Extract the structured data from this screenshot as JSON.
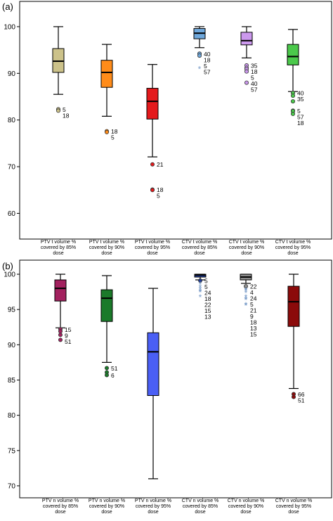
{
  "chart_data": [
    {
      "type": "box",
      "panel_label": "(a)",
      "ylim": [
        56,
        103
      ],
      "yticks": [
        60,
        70,
        80,
        90,
        100
      ],
      "categories": [
        {
          "lines": [
            "PTV t volume %",
            "covered by 85%",
            "dose"
          ],
          "color": "#ccc28a",
          "stats": {
            "min": 85.5,
            "q1": 90.2,
            "median": 92.6,
            "q3": 95.3,
            "max": 100.0
          },
          "outliers": [
            {
              "value": 82.3,
              "label": "5",
              "kind": "circle"
            },
            {
              "value": 82.0,
              "label": "18",
              "kind": "circle"
            }
          ]
        },
        {
          "lines": [
            "PTV t volume %",
            "covered by 90%",
            "dose"
          ],
          "color": "#ff8c1a",
          "stats": {
            "min": 80.8,
            "q1": 87.0,
            "median": 90.2,
            "q3": 92.8,
            "max": 96.2
          },
          "outliers": [
            {
              "value": 77.6,
              "label": "18",
              "kind": "circle"
            },
            {
              "value": 77.4,
              "label": "5",
              "kind": "circle"
            }
          ]
        },
        {
          "lines": [
            "PTV t volume %",
            "covered by 95%",
            "dose"
          ],
          "color": "#e41a1c",
          "stats": {
            "min": 72.1,
            "q1": 80.2,
            "median": 84.0,
            "q3": 86.8,
            "max": 91.9
          },
          "outliers": [
            {
              "value": 70.5,
              "label": "21",
              "kind": "circle"
            },
            {
              "value": 65.1,
              "label": "18",
              "kind": "circle"
            },
            {
              "value": 65.0,
              "label": "5",
              "kind": "circle"
            }
          ]
        },
        {
          "lines": [
            "CTV t volume %",
            "covered by 85%",
            "dose"
          ],
          "color": "#6fa8dc",
          "stats": {
            "min": 95.5,
            "q1": 97.4,
            "median": 98.6,
            "q3": 99.6,
            "max": 100.0
          },
          "outliers": [
            {
              "value": 94.2,
              "label": "40",
              "kind": "circle"
            },
            {
              "value": 94.2,
              "label": "18",
              "kind": "circle"
            },
            {
              "value": 93.8,
              "label": "5",
              "kind": "circle"
            },
            {
              "value": 91.0,
              "label": "57",
              "kind": "star"
            }
          ]
        },
        {
          "lines": [
            "CTV t volume %",
            "covered by 90%",
            "dose"
          ],
          "color": "#cc99ee",
          "stats": {
            "min": 93.3,
            "q1": 96.1,
            "median": 97.0,
            "q3": 98.8,
            "max": 100.0
          },
          "outliers": [
            {
              "value": 91.7,
              "label": "35",
              "kind": "circle"
            },
            {
              "value": 91.2,
              "label": "18",
              "kind": "circle"
            },
            {
              "value": 90.9,
              "label": "5",
              "kind": "circle"
            },
            {
              "value": 90.4,
              "label": "40",
              "kind": "circle"
            },
            {
              "value": 88.0,
              "label": "57",
              "kind": "circle"
            }
          ]
        },
        {
          "lines": [
            "CTV t volume %",
            "covered by 95%",
            "dose"
          ],
          "color": "#4bc94b",
          "stats": {
            "min": 86.1,
            "q1": 91.8,
            "median": 93.6,
            "q3": 96.2,
            "max": 99.4
          },
          "outliers": [
            {
              "value": 85.8,
              "label": "40",
              "kind": "circle"
            },
            {
              "value": 85.2,
              "label": "35",
              "kind": "circle"
            },
            {
              "value": 84.0,
              "label": "",
              "kind": "circle"
            },
            {
              "value": 82.0,
              "label": "5",
              "kind": "circle"
            },
            {
              "value": 81.9,
              "label": "57",
              "kind": "circle"
            },
            {
              "value": 81.3,
              "label": "18",
              "kind": "circle"
            }
          ]
        }
      ]
    },
    {
      "type": "box",
      "panel_label": "(b)",
      "ylim": [
        68.5,
        101
      ],
      "yticks": [
        70,
        75,
        80,
        85,
        90,
        95,
        100
      ],
      "categories": [
        {
          "lines": [
            "PTV n volume %",
            "covered by 85%",
            "dose"
          ],
          "color": "#a3215f",
          "stats": {
            "min": 92.4,
            "q1": 96.2,
            "median": 98.0,
            "q3": 99.2,
            "max": 100.0
          },
          "outliers": [
            {
              "value": 92.2,
              "label": "15",
              "kind": "circle"
            },
            {
              "value": 91.9,
              "label": "9",
              "kind": "circle"
            },
            {
              "value": 91.4,
              "label": "51",
              "kind": "circle"
            },
            {
              "value": 90.7,
              "label": "",
              "kind": "circle"
            }
          ]
        },
        {
          "lines": [
            "PTV n volume %",
            "covered by 90%",
            "dose"
          ],
          "color": "#1b7a2a",
          "stats": {
            "min": 87.5,
            "q1": 93.3,
            "median": 96.6,
            "q3": 97.8,
            "max": 99.8
          },
          "outliers": [
            {
              "value": 86.7,
              "label": "51",
              "kind": "circle"
            },
            {
              "value": 86.1,
              "label": "",
              "kind": "circle"
            },
            {
              "value": 85.7,
              "label": "6",
              "kind": "circle"
            }
          ]
        },
        {
          "lines": [
            "PTV n volume %",
            "covered by 95%",
            "dose"
          ],
          "color": "#4a5ff5",
          "stats": {
            "min": 71.0,
            "q1": 82.8,
            "median": 89.0,
            "q3": 91.7,
            "max": 98.0
          },
          "outliers": []
        },
        {
          "lines": [
            "CTV n volume %",
            "covered by 85%",
            "dose"
          ],
          "color": "#1f3a93",
          "stats": {
            "min": 99.2,
            "q1": 99.6,
            "median": 99.9,
            "q3": 100.0,
            "max": 100.0
          },
          "outliers": [
            {
              "value": 99.1,
              "label": "5",
              "kind": "circle"
            },
            {
              "value": 98.6,
              "label": "5",
              "kind": "star"
            },
            {
              "value": 98.2,
              "label": "24",
              "kind": "star"
            },
            {
              "value": 97.9,
              "label": "18",
              "kind": "star"
            },
            {
              "value": 97.6,
              "label": "22",
              "kind": "star"
            },
            {
              "value": 97.5,
              "label": "15",
              "kind": "star"
            },
            {
              "value": 96.8,
              "label": "13",
              "kind": "star"
            }
          ]
        },
        {
          "lines": [
            "CTV n volume %",
            "covered by 90%",
            "dose"
          ],
          "color": "#8c8c8c",
          "stats": {
            "min": 98.7,
            "q1": 99.2,
            "median": 99.6,
            "q3": 100.0,
            "max": 100.0
          },
          "outliers": [
            {
              "value": 98.3,
              "label": "22",
              "kind": "circle"
            },
            {
              "value": 97.8,
              "label": "4",
              "kind": "star"
            },
            {
              "value": 97.7,
              "label": "24",
              "kind": "star"
            },
            {
              "value": 97.4,
              "label": "5",
              "kind": "star"
            },
            {
              "value": 96.8,
              "label": "21",
              "kind": "star"
            },
            {
              "value": 96.5,
              "label": "9",
              "kind": "star"
            },
            {
              "value": 96.4,
              "label": "18",
              "kind": "star"
            },
            {
              "value": 95.7,
              "label": "13",
              "kind": "star"
            },
            {
              "value": 95.6,
              "label": "15",
              "kind": "star"
            }
          ]
        },
        {
          "lines": [
            "CTV n volume %",
            "covered by 95%",
            "dose"
          ],
          "color": "#8b0a0a",
          "stats": {
            "min": 83.8,
            "q1": 92.6,
            "median": 96.1,
            "q3": 98.3,
            "max": 100.0
          },
          "outliers": [
            {
              "value": 83.0,
              "label": "66",
              "kind": "circle"
            },
            {
              "value": 82.6,
              "label": "51",
              "kind": "circle"
            }
          ]
        }
      ]
    }
  ]
}
